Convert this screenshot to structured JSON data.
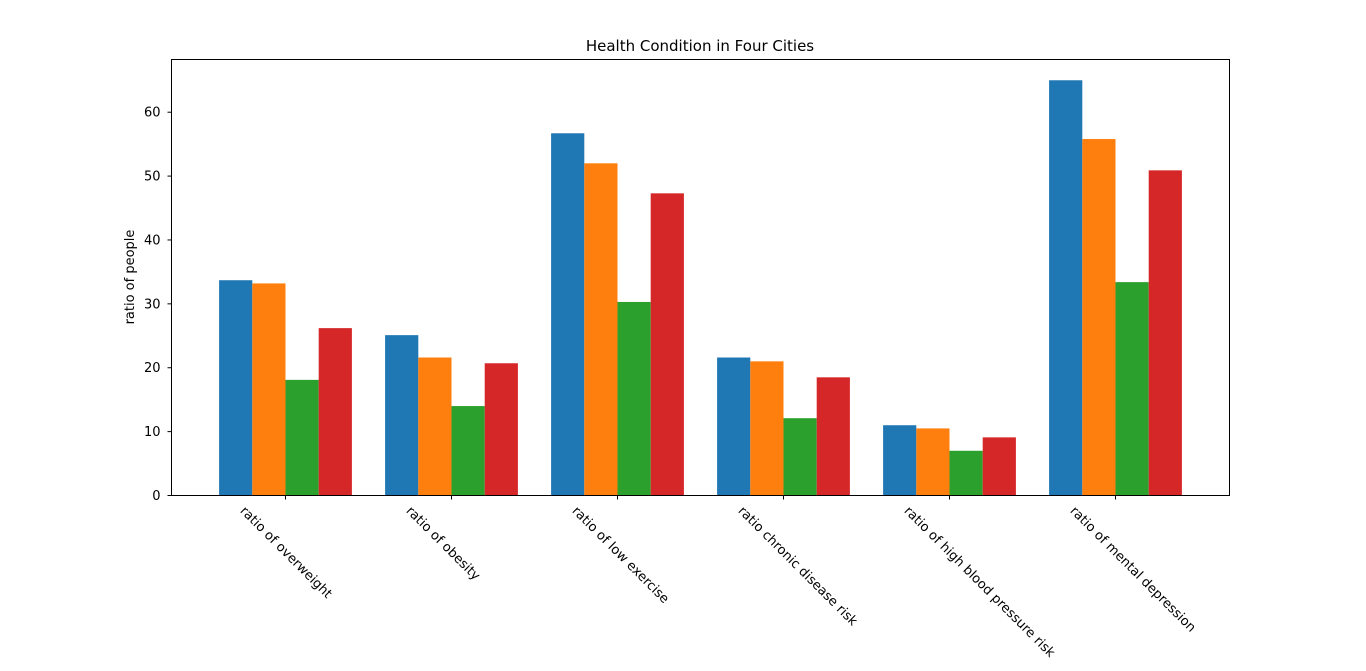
{
  "chart_data": {
    "type": "bar",
    "title": "Health Condition in Four Cities",
    "xlabel": "",
    "ylabel": "ratio of people",
    "categories": [
      "ratio of overweight",
      "ratio of obesity",
      "ratio of low exercise",
      "ratio chronic disease risk",
      "ratio of high blood pressure risk",
      "ratio of mental depression"
    ],
    "series": [
      {
        "color": "#1f77b4",
        "values": [
          33.7,
          25.1,
          56.7,
          21.6,
          11.0,
          65.0
        ]
      },
      {
        "color": "#ff7f0e",
        "values": [
          33.2,
          21.6,
          52.0,
          21.0,
          10.5,
          55.8
        ]
      },
      {
        "color": "#2ca02c",
        "values": [
          18.1,
          14.0,
          30.3,
          12.1,
          7.0,
          33.4
        ]
      },
      {
        "color": "#d62728",
        "values": [
          26.2,
          20.7,
          47.3,
          18.5,
          9.1,
          50.9
        ]
      }
    ],
    "ylim": [
      0,
      68.25
    ],
    "yticks": [
      0,
      10,
      20,
      30,
      40,
      50,
      60
    ],
    "grid": false,
    "legend": "none"
  }
}
